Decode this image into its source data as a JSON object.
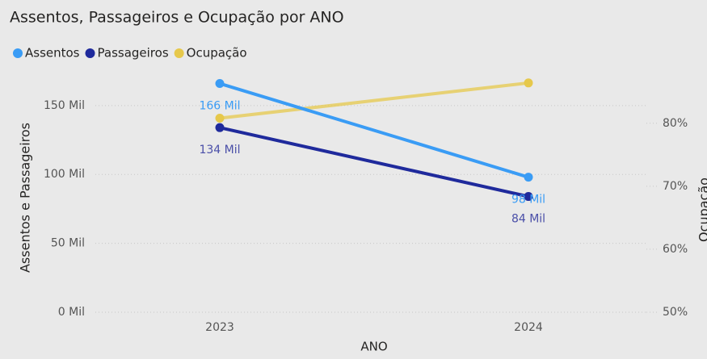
{
  "chart_data": {
    "type": "line",
    "title": "Assentos, Passageiros e Ocupação por ANO",
    "x_label": "ANO",
    "y_label": "Assentos e Passageiros",
    "y2_label": "Ocupação",
    "categories": [
      "2023",
      "2024"
    ],
    "series": [
      {
        "name": "Assentos",
        "color": "#3a9cf5",
        "values": [
          166000,
          98000
        ],
        "value_labels": [
          "166 Mil",
          "98 Mil"
        ]
      },
      {
        "name": "Passageiros",
        "color": "#1f2a9c",
        "values": [
          134000,
          84000
        ],
        "value_labels": [
          "134 Mil",
          "84 Mil"
        ]
      },
      {
        "name": "Ocupação",
        "color": "#e6c84b",
        "values": [
          80.8,
          86.4
        ],
        "axis": "y2"
      }
    ],
    "ylim": [
      0,
      171000
    ],
    "yticks": [
      {
        "value": 0,
        "label": "0 Mil"
      },
      {
        "value": 50000,
        "label": "50 Mil"
      },
      {
        "value": 100000,
        "label": "100 Mil"
      },
      {
        "value": 150000,
        "label": "150 Mil"
      }
    ],
    "y2lim": [
      50,
      87.4
    ],
    "y2ticks": [
      {
        "value": 50,
        "label": "50%"
      },
      {
        "value": 60,
        "label": "60%"
      },
      {
        "value": 70,
        "label": "70%"
      },
      {
        "value": 80,
        "label": "80%"
      }
    ],
    "grid": true,
    "legend": "top-left"
  }
}
